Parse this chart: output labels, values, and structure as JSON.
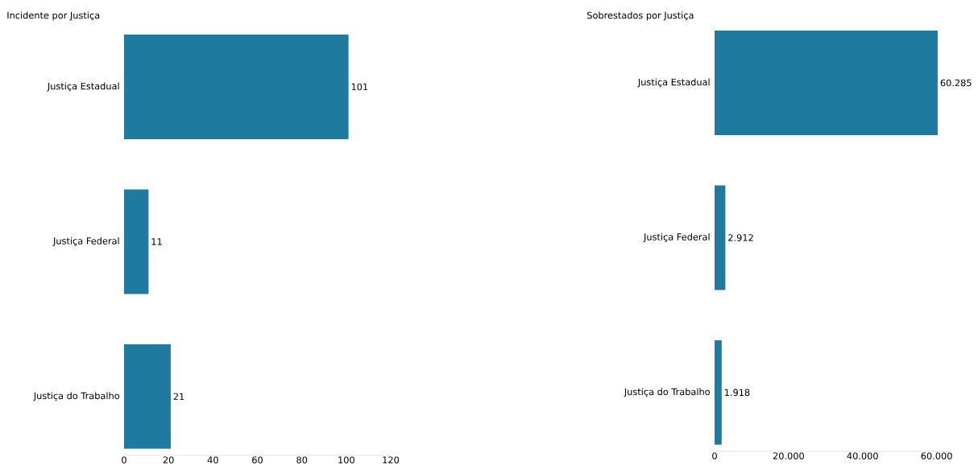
{
  "chart_data": [
    {
      "type": "bar",
      "orientation": "horizontal",
      "title": "Incidente por Justiça",
      "categories": [
        "Justiça Estadual",
        "Justiça Federal",
        "Justiça do Trabalho"
      ],
      "values": [
        101,
        11,
        21
      ],
      "color": "#1f7aa0",
      "xlim": [
        0,
        120
      ],
      "xticks": [
        0,
        20,
        40,
        60,
        80,
        100,
        120
      ],
      "data_labels": true
    },
    {
      "type": "bar",
      "orientation": "horizontal",
      "title": "Sobrestados por Justiça",
      "categories": [
        "Justiça Estadual",
        "Justiça Federal",
        "Justiça do Trabalho"
      ],
      "values": [
        60285,
        2912,
        1918
      ],
      "value_labels": [
        "60.285",
        "2.912",
        "1.918"
      ],
      "color": "#1f7aa0",
      "xlim": [
        0,
        64000
      ],
      "xticks": [
        0,
        {
          "value": 20000,
          "label": "20.000"
        },
        {
          "value": 40000,
          "label": "40.000"
        },
        {
          "value": 60000,
          "label": "60.000"
        }
      ]
    }
  ]
}
